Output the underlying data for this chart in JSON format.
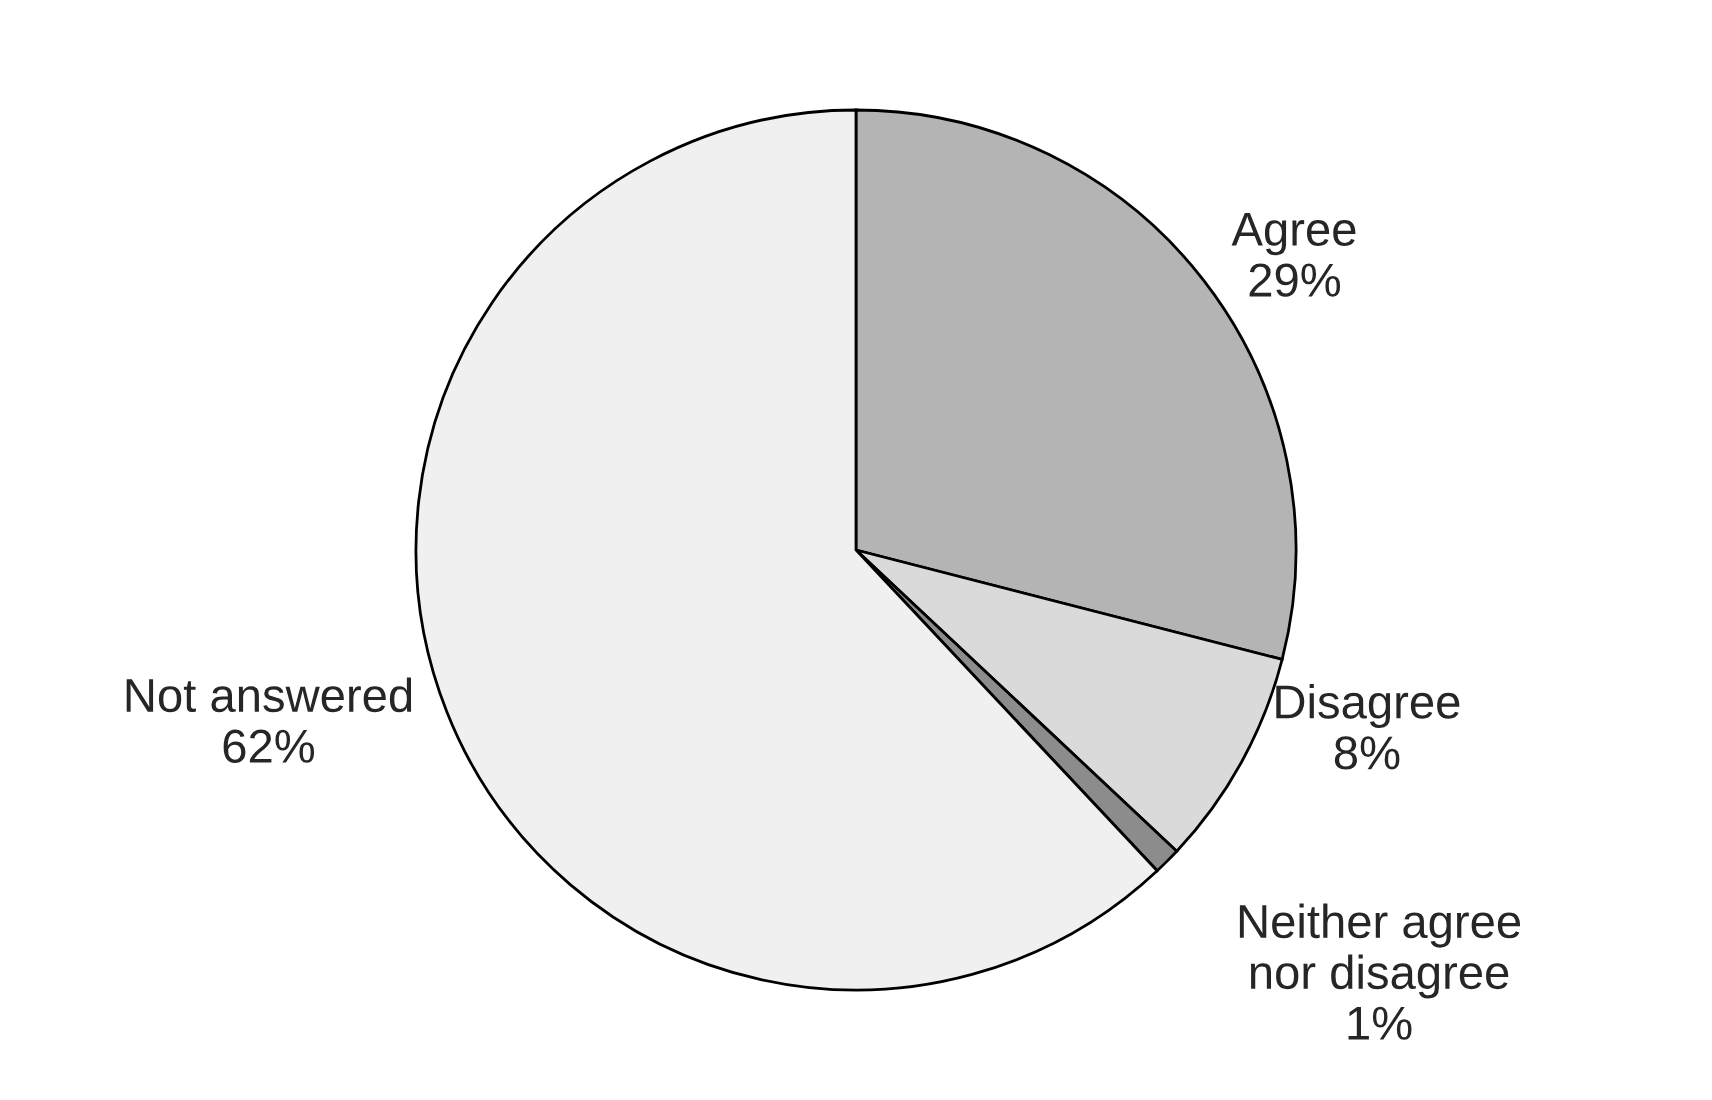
{
  "chart_data": {
    "type": "pie",
    "categories": [
      "Agree",
      "Disagree",
      "Neither agree\nnor disagree",
      "Not answered"
    ],
    "values": [
      29,
      8,
      1,
      62
    ],
    "value_labels": [
      "29%",
      "8%",
      "1%",
      "62%"
    ],
    "colors": [
      "#b4b4b4",
      "#dadada",
      "#8c8c8c",
      "#f0f0f0"
    ]
  }
}
